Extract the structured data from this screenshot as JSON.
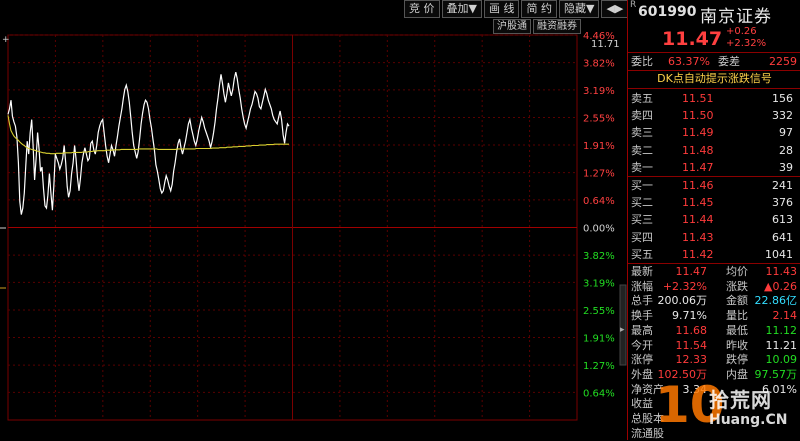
{
  "toolbar": {
    "buttons": [
      "竞 价",
      "叠加▼",
      "画 线",
      "简 约",
      "隐藏▼",
      "◀▶"
    ]
  },
  "subtabs": [
    "沪股通",
    "融资融券"
  ],
  "chart_data": {
    "type": "line",
    "title": "",
    "y_ticks_left": [
      "11.71"
    ],
    "pct_ticks_up": [
      "4.46%",
      "3.82%",
      "3.19%",
      "2.55%",
      "1.91%",
      "1.27%",
      "0.64%"
    ],
    "pct_zero": "0.00%",
    "pct_ticks_down": [
      "0.64%",
      "1.27%",
      "1.91%",
      "2.55%",
      "3.19%",
      "3.82%"
    ],
    "prev_close": 11.21,
    "pct_range": [
      -4.46,
      4.46
    ],
    "series": [
      {
        "color": "#ffffff",
        "values": [
          2.62,
          2.75,
          2.95,
          2.58,
          2.45,
          2.35,
          2.1,
          1.5,
          0.6,
          0.3,
          0.45,
          0.8,
          1.4,
          2.0,
          1.7,
          2.2,
          2.5,
          1.9,
          1.1,
          1.6,
          2.2,
          1.8,
          1.3,
          1.4,
          0.9,
          0.5,
          0.45,
          0.75,
          1.25,
          0.8,
          0.4,
          0.95,
          1.7,
          1.6,
          1.5,
          1.35,
          1.45,
          1.6,
          1.9,
          1.5,
          0.95,
          0.7,
          0.85,
          1.25,
          1.5,
          1.9,
          1.6,
          1.15,
          0.85,
          1.15,
          1.5,
          1.7,
          1.85,
          1.7,
          1.55,
          1.6,
          1.95,
          2.0,
          1.8,
          1.7,
          1.9,
          2.2,
          2.35,
          2.45,
          2.5,
          2.2,
          1.9,
          1.65,
          1.5,
          1.7,
          1.9,
          1.8,
          1.65,
          1.9,
          2.1,
          2.35,
          2.55,
          2.75,
          3.0,
          3.2,
          3.3,
          3.15,
          2.9,
          2.55,
          2.2,
          1.9,
          1.75,
          1.6,
          1.75,
          2.05,
          2.4,
          2.65,
          2.85,
          2.95,
          2.9,
          2.75,
          2.5,
          2.3,
          2.05,
          1.8,
          1.45,
          1.3,
          1.1,
          0.9,
          0.8,
          0.85,
          1.05,
          1.2,
          1.1,
          0.95,
          0.85,
          1.0,
          1.3,
          1.5,
          1.75,
          1.95,
          2.05,
          1.85,
          1.7,
          1.85,
          2.0,
          2.2,
          2.4,
          2.5,
          2.3,
          2.15,
          2.0,
          1.9,
          2.05,
          2.25,
          2.4,
          2.55,
          2.45,
          2.3,
          2.2,
          2.1,
          2.0,
          1.85,
          2.0,
          2.2,
          2.45,
          2.75,
          3.0,
          3.3,
          3.55,
          3.35,
          3.1,
          2.9,
          3.1,
          3.35,
          3.2,
          3.05,
          3.2,
          3.45,
          3.6,
          3.45,
          3.2,
          3.0,
          2.75,
          2.55,
          2.4,
          2.3,
          2.45,
          2.6,
          2.75,
          2.85,
          3.0,
          3.15,
          3.1,
          3.0,
          2.8,
          2.75,
          2.9,
          3.05,
          3.2,
          3.1,
          2.95,
          2.85,
          2.75,
          2.6,
          2.5,
          2.45,
          2.4,
          2.55,
          2.7,
          2.5,
          2.15,
          1.95,
          2.2,
          2.4,
          2.35
        ]
      },
      {
        "color": "#d8cf30",
        "values": [
          2.6,
          2.4,
          2.25,
          2.18,
          2.12,
          2.08,
          2.05,
          2.02,
          1.98,
          1.95,
          1.92,
          1.9,
          1.87,
          1.85,
          1.83,
          1.82,
          1.81,
          1.8,
          1.79,
          1.78,
          1.77,
          1.76,
          1.75,
          1.74,
          1.73,
          1.73,
          1.72,
          1.72,
          1.72,
          1.71,
          1.71,
          1.71,
          1.71,
          1.72,
          1.72,
          1.72,
          1.72,
          1.72,
          1.73,
          1.73,
          1.73,
          1.73,
          1.73,
          1.73,
          1.74,
          1.74,
          1.74,
          1.74,
          1.74,
          1.74,
          1.74,
          1.75,
          1.75,
          1.75,
          1.75,
          1.76,
          1.76,
          1.76,
          1.77,
          1.77,
          1.77,
          1.78,
          1.78,
          1.78,
          1.78,
          1.78,
          1.78,
          1.79,
          1.79,
          1.79,
          1.79,
          1.79,
          1.8,
          1.8,
          1.8,
          1.8,
          1.8,
          1.81,
          1.81,
          1.81,
          1.81,
          1.81,
          1.81,
          1.81,
          1.81,
          1.81,
          1.81,
          1.81,
          1.81,
          1.82,
          1.82,
          1.82,
          1.82,
          1.82,
          1.82,
          1.82,
          1.82,
          1.82,
          1.82,
          1.82,
          1.82,
          1.82,
          1.81,
          1.81,
          1.81,
          1.81,
          1.81,
          1.81,
          1.81,
          1.81,
          1.81,
          1.81,
          1.81,
          1.81,
          1.81,
          1.82,
          1.82,
          1.82,
          1.82,
          1.82,
          1.82,
          1.82,
          1.82,
          1.82,
          1.82,
          1.82,
          1.82,
          1.82,
          1.83,
          1.83,
          1.83,
          1.83,
          1.83,
          1.83,
          1.83,
          1.83,
          1.83,
          1.83,
          1.83,
          1.84,
          1.84,
          1.84,
          1.84,
          1.84,
          1.85,
          1.85,
          1.85,
          1.85,
          1.85,
          1.86,
          1.86,
          1.86,
          1.86,
          1.87,
          1.87,
          1.87,
          1.87,
          1.88,
          1.88,
          1.88,
          1.88,
          1.88,
          1.89,
          1.89,
          1.89,
          1.89,
          1.9,
          1.9,
          1.9,
          1.9,
          1.9,
          1.91,
          1.91,
          1.91,
          1.91,
          1.91,
          1.92,
          1.92,
          1.92,
          1.92,
          1.92,
          1.93,
          1.93,
          1.93,
          1.93,
          1.93,
          1.93,
          1.93,
          1.93,
          1.93,
          1.93,
          1.93
        ]
      }
    ]
  },
  "stock": {
    "flag": "R",
    "code": "601990",
    "name": "南京证券",
    "price": "11.47",
    "change": "+0.26",
    "change_pct": "+2.32%"
  },
  "ratio": {
    "label1": "委比",
    "value1": "63.37%",
    "label2": "委差",
    "value2": "2259"
  },
  "dk_signal": "DK点自动提示涨跌信号",
  "sell": [
    {
      "label": "卖五",
      "price": "11.51",
      "vol": "156"
    },
    {
      "label": "卖四",
      "price": "11.50",
      "vol": "332"
    },
    {
      "label": "卖三",
      "price": "11.49",
      "vol": "97"
    },
    {
      "label": "卖二",
      "price": "11.48",
      "vol": "28"
    },
    {
      "label": "卖一",
      "price": "11.47",
      "vol": "39"
    }
  ],
  "buy": [
    {
      "label": "买一",
      "price": "11.46",
      "vol": "241"
    },
    {
      "label": "买二",
      "price": "11.45",
      "vol": "376"
    },
    {
      "label": "买三",
      "price": "11.44",
      "vol": "613"
    },
    {
      "label": "买四",
      "price": "11.43",
      "vol": "641"
    },
    {
      "label": "买五",
      "price": "11.42",
      "vol": "1041"
    }
  ],
  "stats": [
    {
      "l1": "最新",
      "v1": "11.47",
      "c1": "red",
      "l2": "均价",
      "v2": "11.43",
      "c2": "red"
    },
    {
      "l1": "涨幅",
      "v1": "+2.32%",
      "c1": "red",
      "l2": "涨跌",
      "v2": "▲0.26",
      "c2": "red"
    },
    {
      "l1": "总手",
      "v1": "200.06万",
      "c1": "white",
      "l2": "金额",
      "v2": "22.86亿",
      "c2": "cyan"
    },
    {
      "l1": "换手",
      "v1": "9.71%",
      "c1": "white",
      "l2": "量比",
      "v2": "2.14",
      "c2": "red"
    },
    {
      "l1": "最高",
      "v1": "11.68",
      "c1": "red",
      "l2": "最低",
      "v2": "11.12",
      "c2": "green"
    },
    {
      "l1": "今开",
      "v1": "11.54",
      "c1": "red",
      "l2": "昨收",
      "v2": "11.21",
      "c2": "white"
    },
    {
      "l1": "涨停",
      "v1": "12.33",
      "c1": "red",
      "l2": "跌停",
      "v2": "10.09",
      "c2": "green"
    },
    {
      "l1": "外盘",
      "v1": "102.50万",
      "c1": "red",
      "l2": "内盘",
      "v2": "97.57万",
      "c2": "green"
    },
    {
      "l1": "净资产",
      "v1": "3.34",
      "c1": "white",
      "l2": "",
      "v2": "6.01%",
      "c2": "white"
    },
    {
      "l1": "收益",
      "v1": "",
      "c1": "white",
      "l2": "",
      "v2": "",
      "c2": "white"
    },
    {
      "l1": "总股本",
      "v1": "",
      "c1": "white",
      "l2": "",
      "v2": "",
      "c2": "white"
    },
    {
      "l1": "流通股",
      "v1": "",
      "c1": "white",
      "l2": "",
      "v2": "",
      "c2": "white"
    }
  ],
  "watermark": {
    "ten": "10",
    "cn": "拾荒网",
    "url": "Huang.CN"
  }
}
